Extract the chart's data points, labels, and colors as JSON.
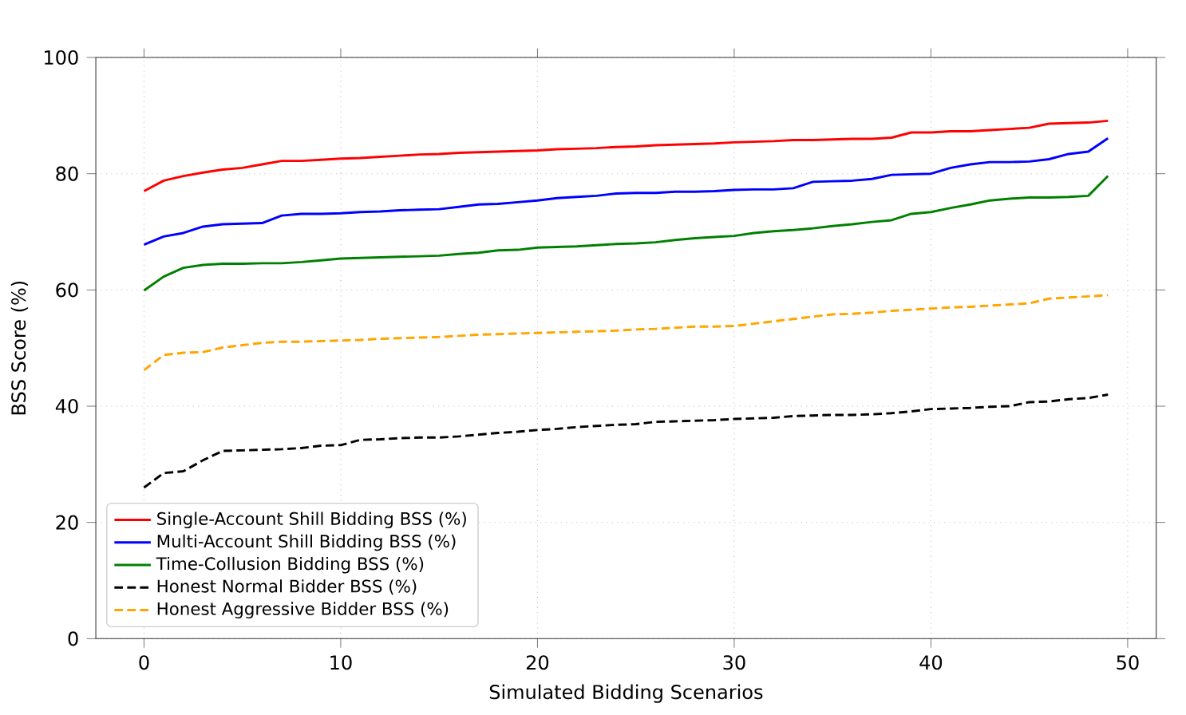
{
  "chart_data": {
    "type": "line",
    "xlabel": "Simulated Bidding Scenarios",
    "ylabel": "BSS Score (%)",
    "x": [
      0,
      1,
      2,
      3,
      4,
      5,
      6,
      7,
      8,
      9,
      10,
      11,
      12,
      13,
      14,
      15,
      16,
      17,
      18,
      19,
      20,
      21,
      22,
      23,
      24,
      25,
      26,
      27,
      28,
      29,
      30,
      31,
      32,
      33,
      34,
      35,
      36,
      37,
      38,
      39,
      40,
      41,
      42,
      43,
      44,
      45,
      46,
      47,
      48,
      49
    ],
    "xlim": [
      -2.45,
      51.45
    ],
    "xticks": [
      0,
      10,
      20,
      30,
      40,
      50
    ],
    "ylim": [
      0,
      100
    ],
    "yticks": [
      0,
      20,
      40,
      60,
      80,
      100
    ],
    "grid": true,
    "legend": "bottom left",
    "marker": "none",
    "series": [
      {
        "name": "Single-Account Shill Bidding BSS (%)",
        "color": "#ff0000",
        "line_style": "solid",
        "values": [
          77,
          78.8,
          79.6,
          80.2,
          80.7,
          81,
          81.6,
          82.2,
          82.2,
          82.4,
          82.6,
          82.7,
          82.9,
          83.1,
          83.3,
          83.4,
          83.6,
          83.7,
          83.8,
          83.9,
          84,
          84.2,
          84.3,
          84.4,
          84.6,
          84.7,
          84.9,
          85,
          85.1,
          85.2,
          85.4,
          85.5,
          85.6,
          85.8,
          85.8,
          85.9,
          86,
          86,
          86.2,
          87.1,
          87.1,
          87.3,
          87.3,
          87.5,
          87.7,
          87.9,
          88.6,
          88.7,
          88.8,
          89.1
        ]
      },
      {
        "name": "Multi-Account Shill Bidding BSS (%)",
        "color": "#0000ff",
        "line_style": "solid",
        "values": [
          67.8,
          69.2,
          69.8,
          70.9,
          71.3,
          71.4,
          71.5,
          72.8,
          73.1,
          73.1,
          73.2,
          73.4,
          73.5,
          73.7,
          73.8,
          73.9,
          74.3,
          74.7,
          74.8,
          75.1,
          75.4,
          75.8,
          76,
          76.2,
          76.6,
          76.7,
          76.7,
          76.9,
          76.9,
          77,
          77.2,
          77.3,
          77.3,
          77.5,
          78.6,
          78.7,
          78.8,
          79.1,
          79.8,
          79.9,
          80,
          81,
          81.6,
          82,
          82,
          82.1,
          82.5,
          83.4,
          83.8,
          86.1
        ]
      },
      {
        "name": "Time-Collusion Bidding BSS (%)",
        "color": "#008000",
        "line_style": "solid",
        "values": [
          59.9,
          62.3,
          63.8,
          64.3,
          64.5,
          64.5,
          64.6,
          64.6,
          64.8,
          65.1,
          65.4,
          65.5,
          65.6,
          65.7,
          65.8,
          65.9,
          66.2,
          66.4,
          66.8,
          66.9,
          67.3,
          67.4,
          67.5,
          67.7,
          67.9,
          68,
          68.2,
          68.6,
          68.9,
          69.1,
          69.3,
          69.8,
          70.1,
          70.3,
          70.6,
          71,
          71.3,
          71.7,
          72,
          73.1,
          73.4,
          74.1,
          74.7,
          75.4,
          75.7,
          75.9,
          75.9,
          76,
          76.2,
          79.6
        ]
      },
      {
        "name": "Honest Normal Bidder BSS (%)",
        "color": "#000000",
        "line_style": "dashed",
        "values": [
          26,
          28.5,
          28.8,
          30.7,
          32.3,
          32.4,
          32.5,
          32.6,
          32.8,
          33.2,
          33.3,
          34.2,
          34.3,
          34.5,
          34.6,
          34.6,
          34.8,
          35.1,
          35.4,
          35.6,
          35.9,
          36.1,
          36.4,
          36.6,
          36.8,
          36.9,
          37.3,
          37.4,
          37.5,
          37.6,
          37.8,
          37.9,
          38,
          38.3,
          38.4,
          38.5,
          38.5,
          38.6,
          38.8,
          39.1,
          39.5,
          39.6,
          39.7,
          39.9,
          40,
          40.7,
          40.8,
          41.2,
          41.4,
          42
        ]
      },
      {
        "name": "Honest Aggressive Bidder BSS (%)",
        "color": "#ffa500",
        "line_style": "dashed",
        "values": [
          46.2,
          48.8,
          49.2,
          49.3,
          50.1,
          50.5,
          50.9,
          51.1,
          51.1,
          51.2,
          51.3,
          51.4,
          51.6,
          51.7,
          51.8,
          51.9,
          52.1,
          52.3,
          52.4,
          52.5,
          52.6,
          52.7,
          52.8,
          52.9,
          53,
          53.2,
          53.3,
          53.5,
          53.7,
          53.7,
          53.8,
          54.2,
          54.6,
          55,
          55.4,
          55.8,
          55.9,
          56.1,
          56.4,
          56.6,
          56.8,
          57,
          57.1,
          57.3,
          57.5,
          57.7,
          58.5,
          58.7,
          58.9,
          59.1
        ]
      }
    ]
  }
}
